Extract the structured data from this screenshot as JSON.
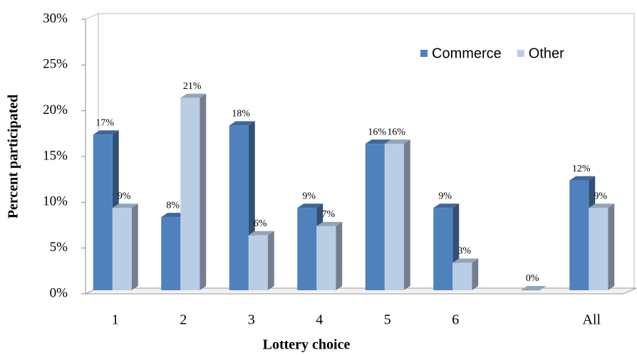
{
  "chart_data": {
    "type": "bar3d",
    "x_label": "Lottery choice",
    "y_label": "Percent participated",
    "categories": [
      "1",
      "2",
      "3",
      "4",
      "5",
      "6",
      null,
      "All"
    ],
    "series": [
      {
        "name": "Commerce",
        "color": "#4f81bd",
        "values": [
          17,
          8,
          18,
          9,
          16,
          9,
          null,
          12
        ],
        "value_labels": [
          "17%",
          "8%",
          "18%",
          "9%",
          "16%",
          "9%",
          null,
          "12%"
        ]
      },
      {
        "name": "Other",
        "color": "#b9cde5",
        "values": [
          9,
          21,
          6,
          7,
          16,
          3,
          0,
          9
        ],
        "value_labels": [
          "9%",
          "21%",
          "6%",
          "7%",
          "16%",
          "3%",
          "0%",
          "9%"
        ]
      }
    ],
    "ylim": [
      0,
      30
    ],
    "yticks": [
      {
        "value": 0,
        "label": "0%"
      },
      {
        "value": 5,
        "label": "5%"
      },
      {
        "value": 10,
        "label": "10%"
      },
      {
        "value": 15,
        "label": "15%"
      },
      {
        "value": 20,
        "label": "20%"
      },
      {
        "value": 25,
        "label": "25%"
      },
      {
        "value": 30,
        "label": "30%"
      }
    ],
    "legend": "top-right"
  }
}
